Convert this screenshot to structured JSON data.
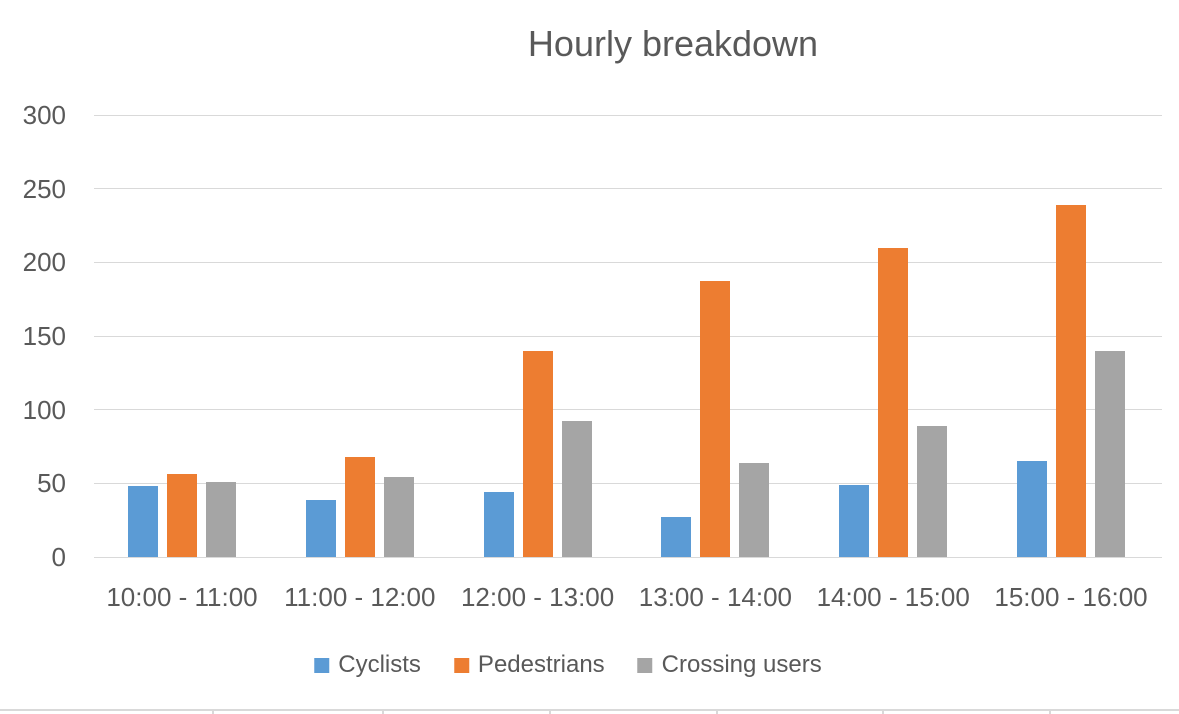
{
  "page": {
    "background_color": "#ffffff"
  },
  "chart_data": {
    "type": "bar",
    "title": "Hourly breakdown",
    "categories": [
      "10:00 - 11:00",
      "11:00 - 12:00",
      "12:00 - 13:00",
      "13:00 - 14:00",
      "14:00 - 15:00",
      "15:00 - 16:00"
    ],
    "series": [
      {
        "name": "Cyclists",
        "color": "#5B9BD5",
        "values": [
          48,
          39,
          44,
          27,
          49,
          65
        ]
      },
      {
        "name": "Pedestrians",
        "color": "#ED7D31",
        "values": [
          56,
          68,
          140,
          187,
          210,
          239
        ]
      },
      {
        "name": "Crossing users",
        "color": "#A5A5A5",
        "values": [
          51,
          54,
          92,
          64,
          89,
          140
        ]
      }
    ],
    "xlabel": "",
    "ylabel": "",
    "ylim": [
      0,
      300
    ],
    "ytick_step": 50,
    "ytick_labels": [
      "0",
      "50",
      "100",
      "150",
      "200",
      "250",
      "300"
    ],
    "grid": true,
    "legend_position": "bottom",
    "text_color": "#595959",
    "gridline_color": "#D9D9D9"
  }
}
